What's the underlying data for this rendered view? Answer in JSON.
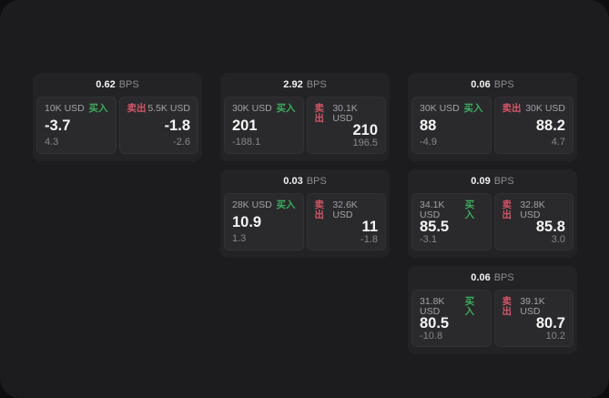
{
  "labels": {
    "bps": "BPS",
    "buy": "买入",
    "sell": "卖出"
  },
  "colors": {
    "buy_green": "#3dab5e",
    "sell_red": "#d15568",
    "panel_bg": "#1c1c1e",
    "card_bg": "#232325",
    "tile_bg": "#2a2a2c"
  },
  "cards": [
    {
      "bps": "0.62",
      "buy": {
        "amount": "10K USD",
        "price": "-3.7",
        "delta": "4.3"
      },
      "sell": {
        "amount": "5.5K USD",
        "price": "-1.8",
        "delta": "-2.6"
      }
    },
    {
      "bps": "2.92",
      "buy": {
        "amount": "30K USD",
        "price": "201",
        "delta": "-188.1"
      },
      "sell": {
        "amount": "30.1K USD",
        "price": "210",
        "delta": "196.5"
      }
    },
    {
      "bps": "0.06",
      "buy": {
        "amount": "30K USD",
        "price": "88",
        "delta": "-4.9"
      },
      "sell": {
        "amount": "30K USD",
        "price": "88.2",
        "delta": "4.7"
      }
    },
    {
      "bps": "0.03",
      "buy": {
        "amount": "28K USD",
        "price": "10.9",
        "delta": "1.3"
      },
      "sell": {
        "amount": "32.6K USD",
        "price": "11",
        "delta": "-1.8"
      }
    },
    {
      "bps": "0.09",
      "buy": {
        "amount": "34.1K USD",
        "price": "85.5",
        "delta": "-3.1"
      },
      "sell": {
        "amount": "32.8K USD",
        "price": "85.8",
        "delta": "3.0"
      }
    },
    {
      "bps": "0.06",
      "buy": {
        "amount": "31.8K USD",
        "price": "80.5",
        "delta": "-10.8"
      },
      "sell": {
        "amount": "39.1K USD",
        "price": "80.7",
        "delta": "10.2"
      }
    }
  ]
}
